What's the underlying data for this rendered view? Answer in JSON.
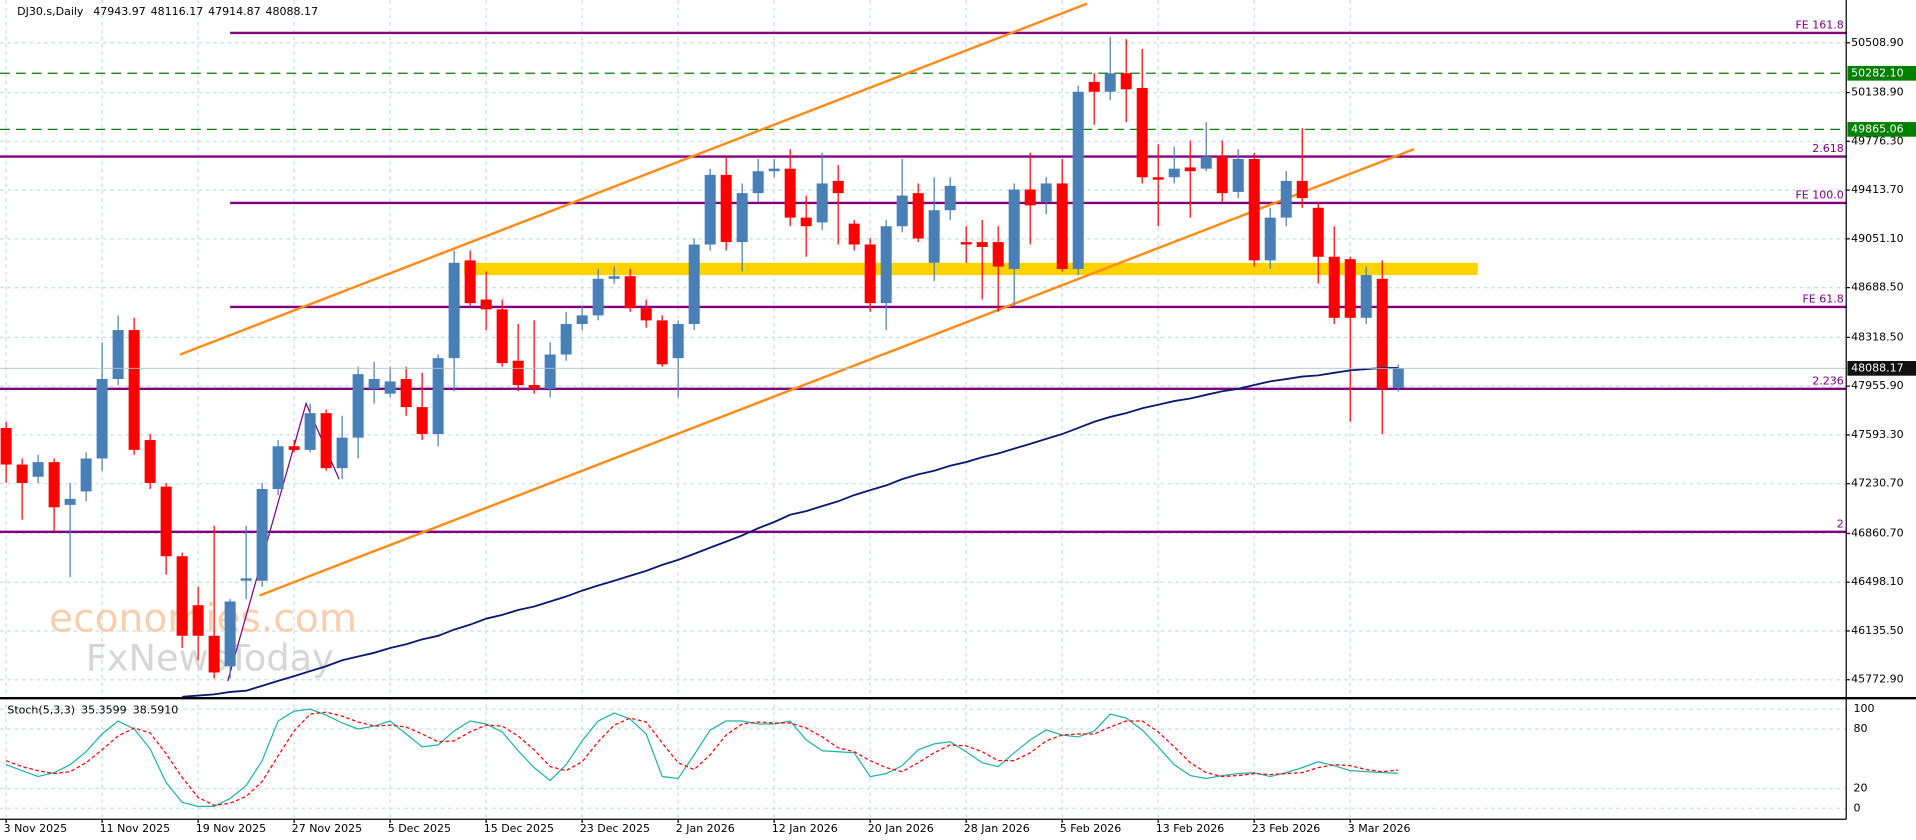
{
  "chart_data": {
    "type": "candlestick",
    "title": "DJ30.s,Daily",
    "watermark": [
      "economies.com",
      "FxNewsToday"
    ],
    "bull_color": "#4a7fb5",
    "bear_color": "#ff0000",
    "ylim": [
      45645,
      50827
    ],
    "yticks": [
      {
        "value": 50508.9,
        "label": "50508.90"
      },
      {
        "value": 50138.9,
        "label": "50138.90"
      },
      {
        "value": 49776.3,
        "label": "49776.30"
      },
      {
        "value": 49413.7,
        "label": "49413.70"
      },
      {
        "value": 49051.1,
        "label": "49051.10"
      },
      {
        "value": 48688.5,
        "label": "48688.50"
      },
      {
        "value": 48318.5,
        "label": "48318.50"
      },
      {
        "value": 47955.9,
        "label": "47955.90"
      },
      {
        "value": 47593.3,
        "label": "47593.30"
      },
      {
        "value": 47230.7,
        "label": "47230.70"
      },
      {
        "value": 46860.7,
        "label": "46860.70"
      },
      {
        "value": 46498.1,
        "label": "46498.10"
      },
      {
        "value": 46135.5,
        "label": "46135.50"
      },
      {
        "value": 45772.9,
        "label": "45772.90"
      }
    ],
    "grid": true,
    "categories": [
      "3 Nov 2025",
      null,
      null,
      null,
      null,
      null,
      "11 Nov 2025",
      null,
      null,
      null,
      null,
      null,
      "19 Nov 2025",
      null,
      null,
      null,
      null,
      null,
      "27 Nov 2025",
      null,
      null,
      null,
      null,
      null,
      "5 Dec 2025",
      null,
      null,
      null,
      null,
      null,
      "15 Dec 2025",
      null,
      null,
      null,
      null,
      null,
      "23 Dec 2025",
      null,
      null,
      null,
      null,
      null,
      "2 Jan 2026",
      null,
      null,
      null,
      null,
      null,
      "12 Jan 2026",
      null,
      null,
      null,
      null,
      null,
      "20 Jan 2026",
      null,
      null,
      null,
      null,
      null,
      "28 Jan 2026",
      null,
      null,
      null,
      null,
      null,
      "5 Feb 2026",
      null,
      null,
      null,
      null,
      null,
      "13 Feb 2026",
      null,
      null,
      null,
      null,
      null,
      "23 Feb 2026",
      null,
      null,
      null,
      null,
      null,
      "3 Mar 2026",
      null,
      null,
      null
    ],
    "ohlc": [
      [
        47645,
        47691,
        47236,
        47373
      ],
      [
        47373,
        47418,
        46964,
        47236
      ],
      [
        47282,
        47446,
        47236,
        47391
      ],
      [
        47391,
        47418,
        46873,
        47055
      ],
      [
        47073,
        47236,
        46537,
        47118
      ],
      [
        47173,
        47464,
        47100,
        47418
      ],
      [
        47418,
        48282,
        47327,
        48009
      ],
      [
        48009,
        48482,
        47964,
        48373
      ],
      [
        48373,
        48464,
        47446,
        47482
      ],
      [
        47555,
        47600,
        47191,
        47236
      ],
      [
        47209,
        47236,
        46555,
        46691
      ],
      [
        46691,
        46718,
        46009,
        46100
      ],
      [
        46327,
        46464,
        45918,
        46100
      ],
      [
        46100,
        46918,
        45782,
        45827
      ],
      [
        45873,
        46373,
        45782,
        46355
      ],
      [
        46509,
        46918,
        46373,
        46527
      ],
      [
        46509,
        47236,
        46464,
        47191
      ],
      [
        47191,
        47555,
        47146,
        47509
      ],
      [
        47509,
        47555,
        47464,
        47482
      ],
      [
        47482,
        47827,
        47464,
        47755
      ],
      [
        47755,
        47782,
        47327,
        47346
      ],
      [
        47346,
        47736,
        47264,
        47573
      ],
      [
        47573,
        48100,
        47418,
        48045
      ],
      [
        47936,
        48136,
        47827,
        48009
      ],
      [
        47900,
        48100,
        47873,
        47991
      ],
      [
        48009,
        48100,
        47736,
        47800
      ],
      [
        47800,
        48055,
        47555,
        47600
      ],
      [
        47600,
        48191,
        47509,
        48164
      ],
      [
        48164,
        48964,
        47918,
        48873
      ],
      [
        48891,
        48964,
        48554,
        48573
      ],
      [
        48600,
        48809,
        48373,
        48527
      ],
      [
        48527,
        48600,
        48100,
        48127
      ],
      [
        48145,
        48418,
        47918,
        47964
      ],
      [
        47964,
        48445,
        47900,
        47936
      ],
      [
        47936,
        48282,
        47873,
        48191
      ],
      [
        48191,
        48509,
        48145,
        48418
      ],
      [
        48418,
        48554,
        48373,
        48482
      ],
      [
        48482,
        48827,
        48445,
        48754
      ],
      [
        48754,
        48845,
        48718,
        48773
      ],
      [
        48773,
        48827,
        48509,
        48536
      ],
      [
        48536,
        48600,
        48391,
        48445
      ],
      [
        48445,
        48482,
        48100,
        48118
      ],
      [
        48164,
        48445,
        47873,
        48418
      ],
      [
        48418,
        49054,
        48373,
        49009
      ],
      [
        49009,
        49573,
        48964,
        49527
      ],
      [
        49527,
        49663,
        48964,
        49027
      ],
      [
        49027,
        49463,
        48809,
        49391
      ],
      [
        49391,
        49645,
        49327,
        49554
      ],
      [
        49554,
        49645,
        49509,
        49573
      ],
      [
        49573,
        49718,
        49145,
        49209
      ],
      [
        49209,
        49373,
        48918,
        49145
      ],
      [
        49173,
        49691,
        49118,
        49463
      ],
      [
        49482,
        49600,
        49009,
        49391
      ],
      [
        49164,
        49191,
        48964,
        49009
      ],
      [
        49009,
        49054,
        48509,
        48573
      ],
      [
        48573,
        49191,
        48373,
        49145
      ],
      [
        49145,
        49645,
        49100,
        49373
      ],
      [
        49391,
        49463,
        49027,
        49054
      ],
      [
        48873,
        49509,
        48736,
        49264
      ],
      [
        49264,
        49509,
        49191,
        49445
      ],
      [
        49027,
        49145,
        48873,
        49009
      ],
      [
        49027,
        49191,
        48600,
        48991
      ],
      [
        49027,
        49145,
        48509,
        48845
      ],
      [
        48827,
        49463,
        48554,
        49418
      ],
      [
        49418,
        49691,
        49009,
        49300
      ],
      [
        49327,
        49509,
        49236,
        49463
      ],
      [
        49463,
        49645,
        48809,
        48827
      ],
      [
        48827,
        50191,
        48782,
        50145
      ],
      [
        50218,
        50282,
        49900,
        50145
      ],
      [
        50145,
        50554,
        50082,
        50282
      ],
      [
        50282,
        50536,
        49918,
        50163
      ],
      [
        50173,
        50463,
        49463,
        49509
      ],
      [
        49509,
        49754,
        49145,
        49491
      ],
      [
        49509,
        49736,
        49463,
        49573
      ],
      [
        49582,
        49782,
        49209,
        49554
      ],
      [
        49573,
        49918,
        49554,
        49663
      ],
      [
        49663,
        49782,
        49327,
        49391
      ],
      [
        49400,
        49718,
        49354,
        49645
      ],
      [
        49645,
        49691,
        48845,
        48891
      ],
      [
        48891,
        49282,
        48827,
        49209
      ],
      [
        49209,
        49554,
        49145,
        49482
      ],
      [
        49482,
        49873,
        49282,
        49354
      ],
      [
        49282,
        49327,
        48718,
        48918
      ],
      [
        48918,
        49145,
        48418,
        48464
      ],
      [
        48900,
        48918,
        47691,
        48464
      ],
      [
        48464,
        48845,
        48418,
        48782
      ],
      [
        48754,
        48891,
        47600,
        47936
      ],
      [
        47943.97,
        48116.17,
        47914.87,
        48088.17
      ]
    ],
    "ma": {
      "color": "#0a1a6e",
      "values": [
        null,
        null,
        null,
        null,
        null,
        null,
        null,
        null,
        null,
        null,
        null,
        45646,
        45655,
        45664,
        45682,
        45691,
        45728,
        45764,
        45800,
        45837,
        45873,
        45918,
        45946,
        45973,
        46009,
        46037,
        46073,
        46100,
        46146,
        46182,
        46227,
        46255,
        46291,
        46318,
        46355,
        46391,
        46436,
        46473,
        46509,
        46546,
        46582,
        46627,
        46664,
        46709,
        46755,
        46800,
        46846,
        46900,
        46946,
        47000,
        47027,
        47064,
        47100,
        47146,
        47182,
        47218,
        47264,
        47300,
        47327,
        47364,
        47391,
        47427,
        47455,
        47491,
        47527,
        47564,
        47600,
        47645,
        47691,
        47727,
        47755,
        47791,
        47818,
        47845,
        47864,
        47891,
        47918,
        47936,
        47964,
        47991,
        48009,
        48027,
        48036,
        48055,
        48073,
        48082,
        48091,
        48091
      ]
    },
    "levels": [
      {
        "price": 50582,
        "text": "FE 161.8",
        "color": "#800080"
      },
      {
        "price": 50282.1,
        "price_label": "50282.10",
        "color": "#008000",
        "dash": true
      },
      {
        "price": 49865.06,
        "color": "#008000",
        "dash": true
      },
      {
        "price": 49663,
        "text": "2.618",
        "color": "#800080"
      },
      {
        "price": 49318,
        "text": "FE 100.0",
        "color": "#800080"
      },
      {
        "price": 48545,
        "text": "FE 61.8",
        "color": "#800080"
      },
      {
        "price": 47936,
        "text": "2.236",
        "color": "#800080"
      },
      {
        "price": 46873,
        "text": "2",
        "color": "#800080"
      }
    ],
    "band": {
      "price": 48827,
      "color": "#ffd200"
    },
    "stoch": {
      "title": "Stoch(5,3,3)",
      "ylim": [
        -11,
        108.6
      ],
      "yticks": [
        0,
        20,
        80,
        100
      ],
      "series": [
        {
          "color": "#20b2aa",
          "values": [
            44,
            38,
            32,
            36,
            44,
            57,
            75,
            88,
            80,
            60,
            26,
            6,
            2,
            2,
            10,
            23,
            48,
            88,
            98,
            100,
            94,
            86,
            80,
            83,
            88,
            75,
            62,
            64,
            78,
            88,
            85,
            77,
            58,
            41,
            28,
            44,
            68,
            88,
            96,
            90,
            75,
            32,
            30,
            54,
            79,
            88,
            88,
            85,
            85,
            88,
            69,
            58,
            57,
            56,
            32,
            35,
            43,
            59,
            65,
            67,
            57,
            46,
            42,
            56,
            69,
            79,
            74,
            72,
            78,
            95,
            91,
            79,
            62,
            44,
            33,
            30,
            33,
            35,
            36,
            32,
            36,
            41,
            47,
            43,
            38,
            37,
            36,
            35.3599
          ],
          "value_labels": [
            null,
            null,
            null,
            null,
            null,
            null,
            null,
            null,
            null,
            null,
            null,
            null,
            null,
            null,
            null,
            null,
            null,
            null,
            null,
            null,
            null,
            null,
            null,
            null,
            null,
            null,
            null,
            null,
            null,
            null,
            null,
            null,
            null,
            null,
            null,
            null,
            null,
            null,
            null,
            null,
            null,
            null,
            null,
            null,
            null,
            null,
            null,
            null,
            null,
            null,
            null,
            null,
            null,
            null,
            null,
            null,
            null,
            null,
            null,
            null,
            null,
            null,
            null,
            null,
            null,
            null,
            null,
            null,
            null,
            null,
            null,
            null,
            null,
            null,
            null,
            null,
            null,
            null,
            null,
            null,
            null,
            null,
            null,
            null,
            null,
            null,
            null,
            "35.3599"
          ]
        },
        {
          "color": "#ff0000",
          "dash": true,
          "values": [
            48,
            42,
            38,
            35,
            37,
            46,
            59,
            73,
            81,
            76,
            55,
            31,
            11,
            3,
            5,
            12,
            27,
            53,
            78,
            95,
            97,
            93,
            87,
            83,
            84,
            82,
            75,
            67,
            68,
            77,
            84,
            83,
            73,
            59,
            42,
            38,
            47,
            67,
            84,
            91,
            87,
            66,
            46,
            39,
            54,
            74,
            85,
            87,
            86,
            86,
            81,
            72,
            61,
            57,
            48,
            41,
            37,
            46,
            56,
            64,
            63,
            57,
            48,
            48,
            56,
            68,
            74,
            75,
            75,
            82,
            88,
            88,
            77,
            62,
            46,
            36,
            32,
            33,
            35,
            34,
            35,
            36,
            41,
            44,
            43,
            39,
            37,
            38.591
          ],
          "value_labels": [
            null,
            null,
            null,
            null,
            null,
            null,
            null,
            null,
            null,
            null,
            null,
            null,
            null,
            null,
            null,
            null,
            null,
            null,
            null,
            null,
            null,
            null,
            null,
            null,
            null,
            null,
            null,
            null,
            null,
            null,
            null,
            null,
            null,
            null,
            null,
            null,
            null,
            null,
            null,
            null,
            null,
            null,
            null,
            null,
            null,
            null,
            null,
            null,
            null,
            null,
            null,
            null,
            null,
            null,
            null,
            null,
            null,
            null,
            null,
            null,
            null,
            null,
            null,
            null,
            null,
            null,
            null,
            null,
            null,
            null,
            null,
            null,
            null,
            null,
            null,
            null,
            null,
            null,
            null,
            null,
            null,
            null,
            null,
            null,
            null,
            null,
            null,
            "38.5910"
          ]
        }
      ]
    }
  }
}
